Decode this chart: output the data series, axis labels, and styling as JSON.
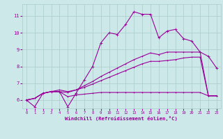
{
  "xlabel": "Windchill (Refroidissement éolien,°C)",
  "background_color": "#cce8e8",
  "grid_color": "#aacccc",
  "line_color": "#990099",
  "x_ticks": [
    0,
    1,
    2,
    3,
    4,
    5,
    6,
    7,
    8,
    9,
    10,
    11,
    12,
    13,
    14,
    15,
    16,
    17,
    18,
    19,
    20,
    21,
    22,
    23
  ],
  "y_ticks": [
    6,
    7,
    8,
    9,
    10,
    11
  ],
  "ylim": [
    5.5,
    11.7
  ],
  "xlim": [
    -0.5,
    23.5
  ],
  "series1": [
    6.0,
    5.6,
    6.4,
    6.5,
    6.5,
    5.6,
    6.4,
    7.2,
    8.0,
    9.4,
    10.0,
    9.9,
    10.5,
    11.25,
    11.1,
    11.1,
    9.7,
    10.1,
    10.2,
    9.65,
    9.5,
    8.85,
    8.6,
    7.9
  ],
  "series2": [
    6.0,
    6.1,
    6.4,
    6.5,
    6.6,
    6.5,
    6.6,
    6.85,
    7.1,
    7.4,
    7.65,
    7.9,
    8.15,
    8.4,
    8.6,
    8.8,
    8.7,
    8.85,
    8.85,
    8.85,
    8.85,
    8.85,
    6.25,
    6.25
  ],
  "series3": [
    6.0,
    6.1,
    6.4,
    6.5,
    6.5,
    6.45,
    6.6,
    6.75,
    6.95,
    7.15,
    7.35,
    7.55,
    7.75,
    7.95,
    8.15,
    8.3,
    8.3,
    8.35,
    8.4,
    8.5,
    8.55,
    8.55,
    6.25,
    6.25
  ],
  "series4": [
    6.0,
    6.1,
    6.4,
    6.5,
    6.5,
    6.2,
    6.3,
    6.35,
    6.4,
    6.45,
    6.45,
    6.45,
    6.45,
    6.45,
    6.45,
    6.45,
    6.45,
    6.45,
    6.45,
    6.45,
    6.45,
    6.45,
    6.25,
    6.25
  ]
}
